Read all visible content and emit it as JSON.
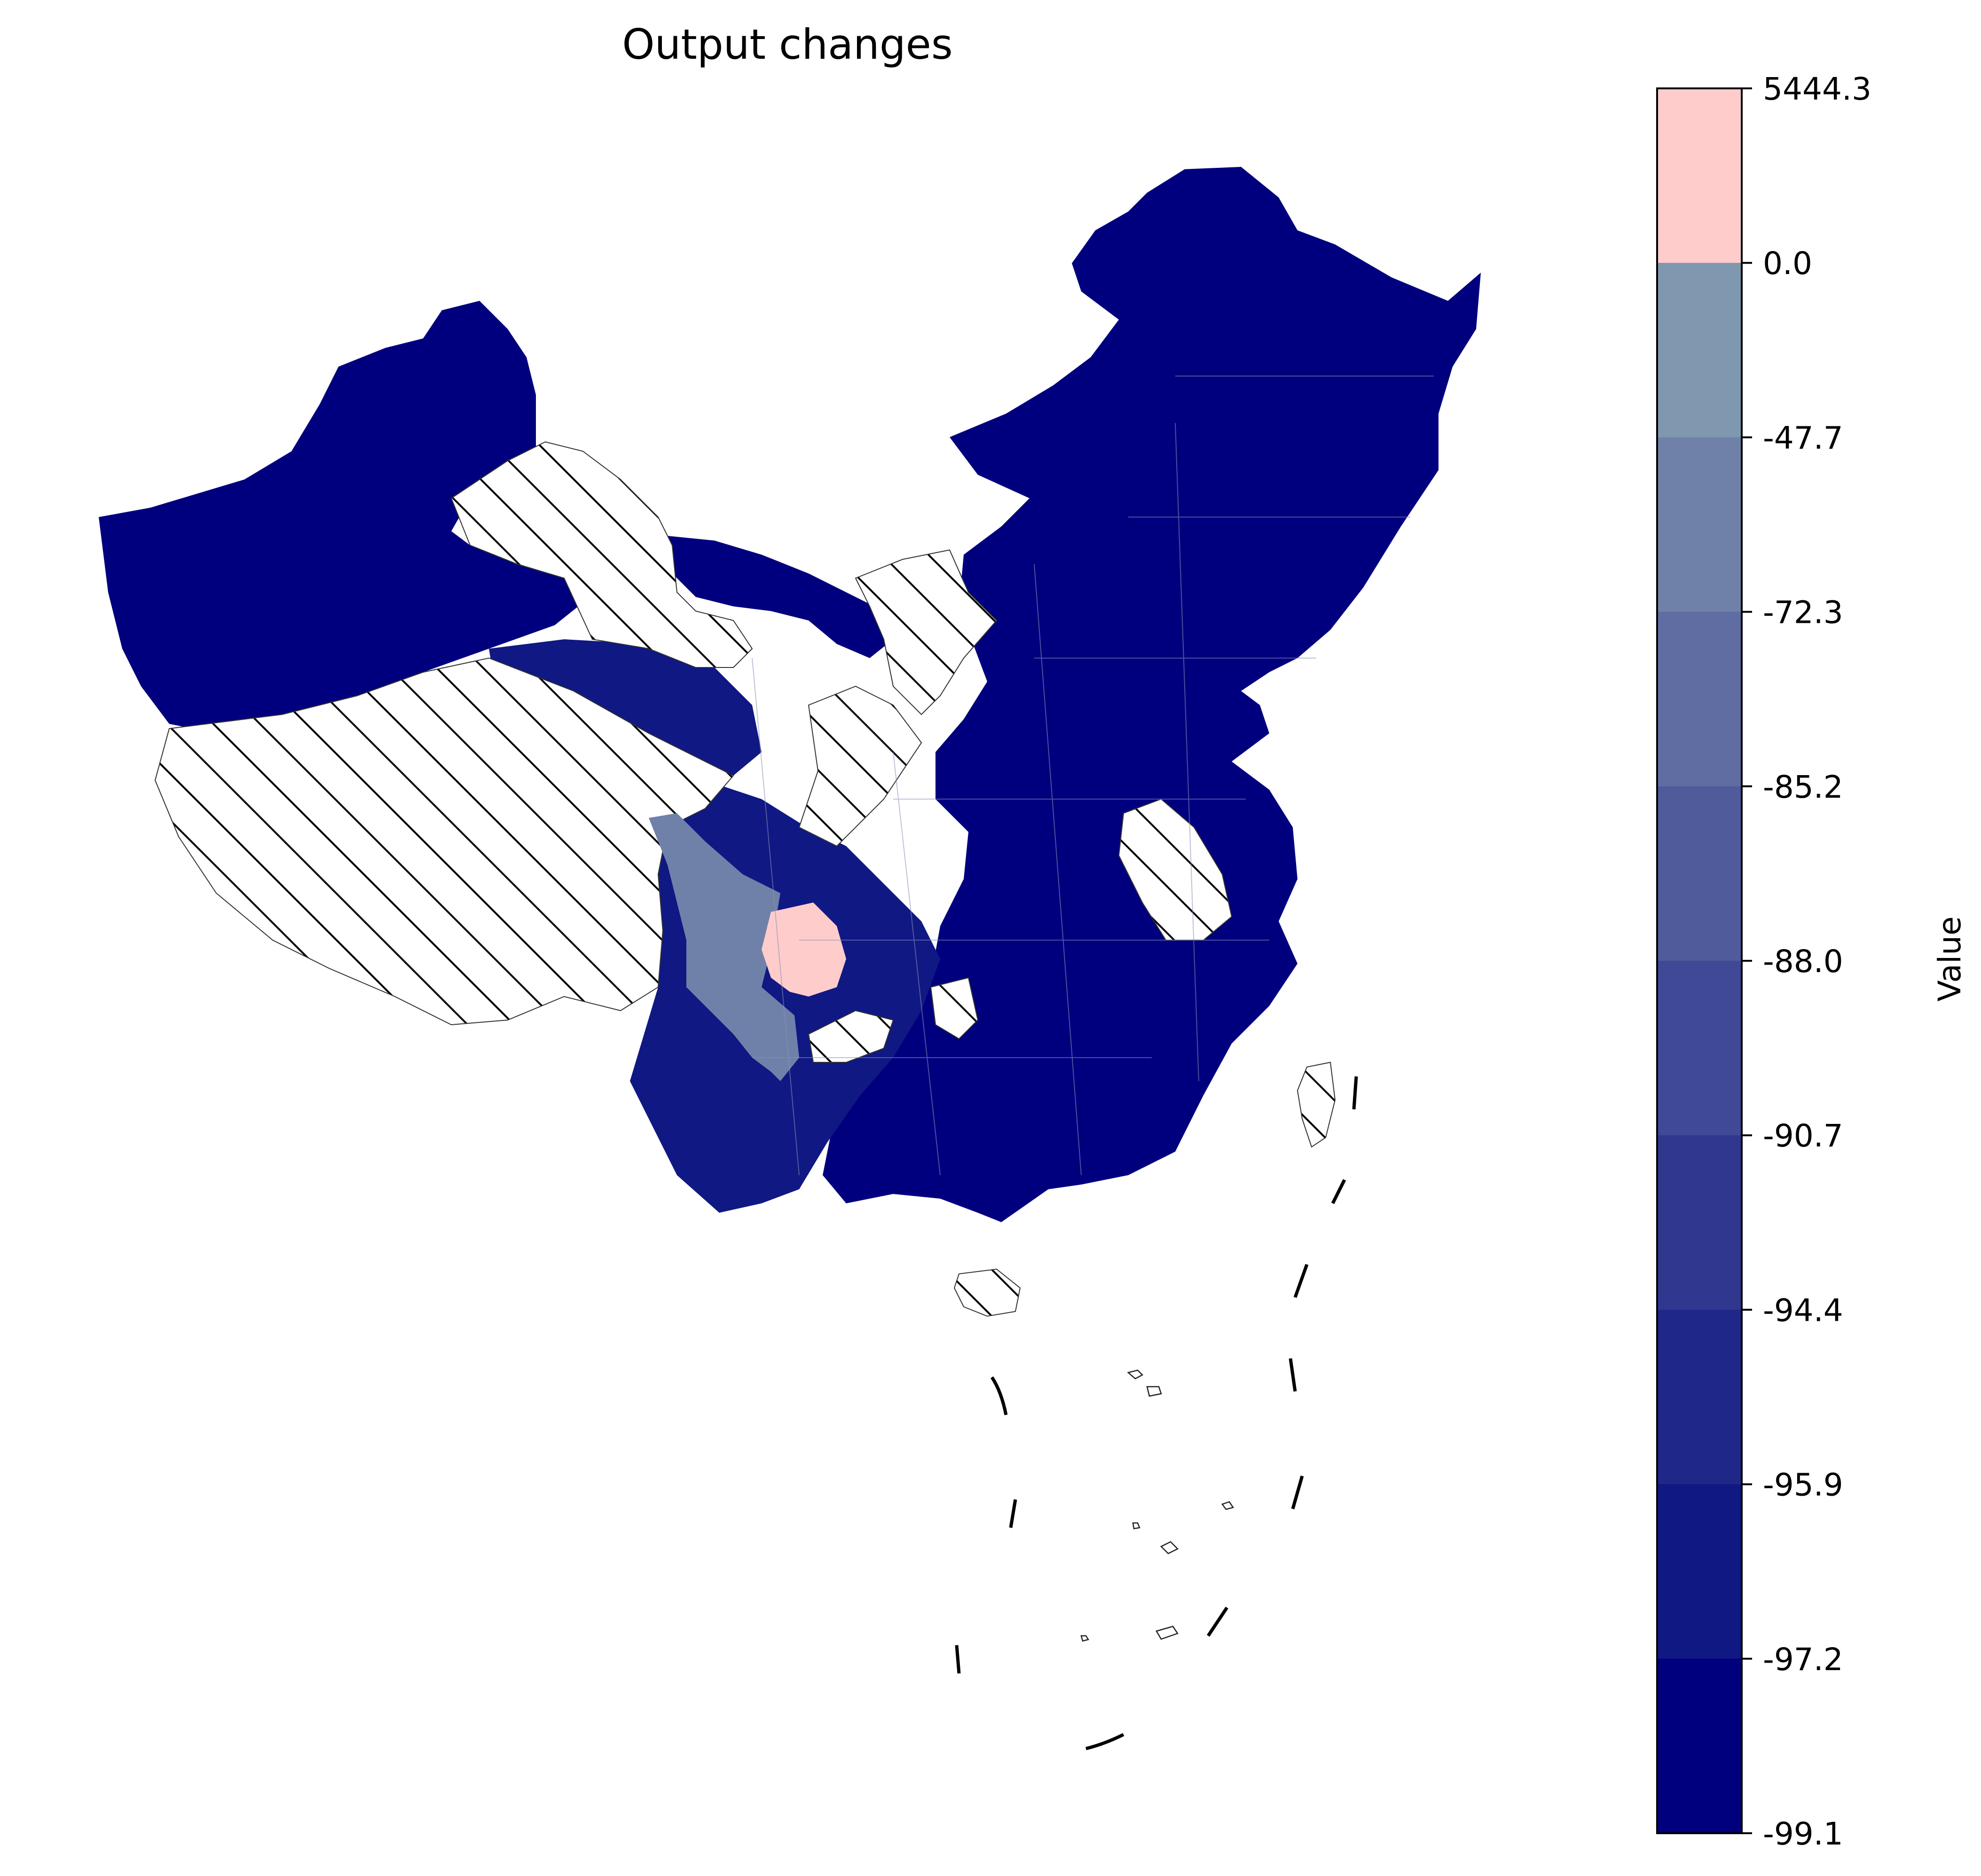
{
  "title": "Output changes",
  "colorbar": {
    "label": "Value",
    "ticks": [
      "5444.3",
      "0.0",
      "-47.7",
      "-72.3",
      "-85.2",
      "-88.0",
      "-90.7",
      "-94.4",
      "-95.9",
      "-97.2",
      "-99.1"
    ],
    "colors": [
      "#ffcccc",
      "#7f98b0",
      "#6f81a8",
      "#5f6da2",
      "#4f5b9b",
      "#3f4995",
      "#2f388e",
      "#1f2888",
      "#101883",
      "#00007f"
    ]
  },
  "legend_colors": {
    "no_data_hatch": "#000000",
    "positive_region": "#ffcccc",
    "dominant": "#00007f"
  }
}
